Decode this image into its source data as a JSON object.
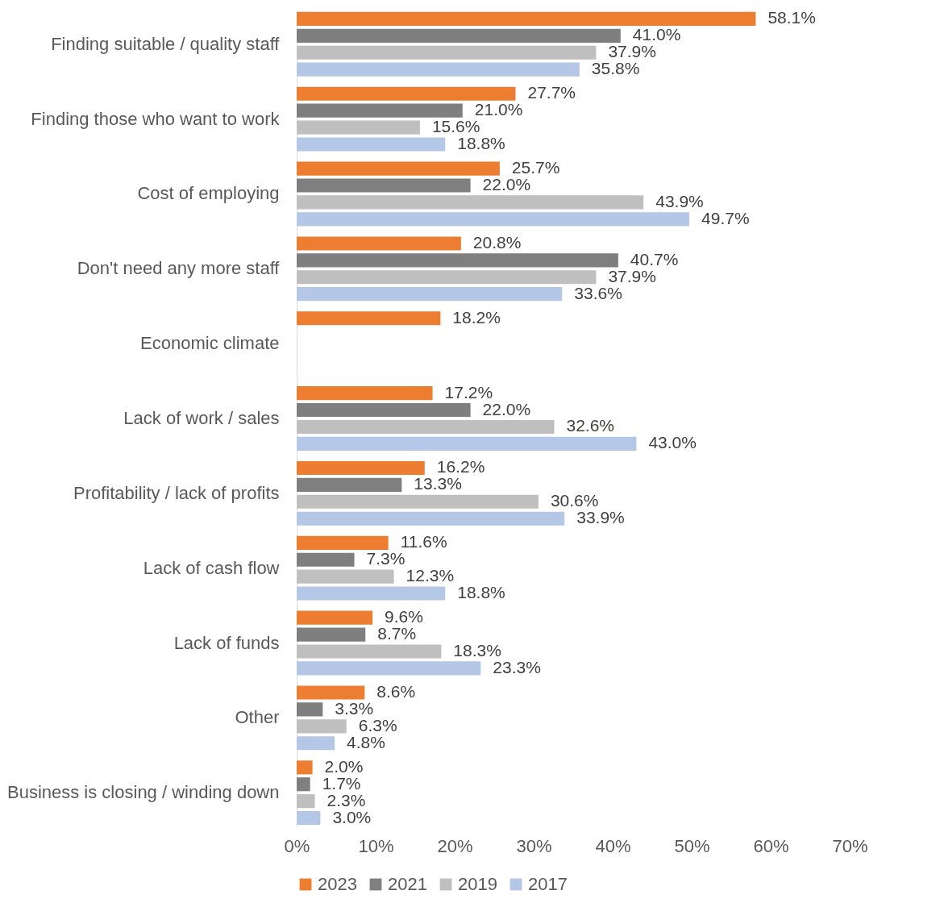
{
  "chart_data": {
    "type": "bar",
    "orientation": "horizontal",
    "categories": [
      "Finding suitable / quality staff",
      "Finding those who want to work",
      "Cost of employing",
      "Don't need any more staff",
      "Economic climate",
      "Lack of work / sales",
      "Profitability / lack of profits",
      "Lack of cash flow",
      "Lack of funds",
      "Other",
      "Business is closing / winding down"
    ],
    "series": [
      {
        "name": "2023",
        "color": "#ed7d31",
        "values": [
          58.1,
          27.7,
          25.7,
          20.8,
          18.2,
          17.2,
          16.2,
          11.6,
          9.6,
          8.6,
          2.0
        ],
        "value_labels": [
          "58.1%",
          "27.7%",
          "25.7%",
          "20.8%",
          "18.2%",
          "17.2%",
          "16.2%",
          "11.6%",
          "9.6%",
          "8.6%",
          "2.0%"
        ]
      },
      {
        "name": "2021",
        "color": "#7f7f7f",
        "values": [
          41.0,
          21.0,
          22.0,
          40.7,
          null,
          22.0,
          13.3,
          7.3,
          8.7,
          3.3,
          1.7
        ],
        "value_labels": [
          "41.0%",
          "21.0%",
          "22.0%",
          "40.7%",
          null,
          "22.0%",
          "13.3%",
          "7.3%",
          "8.7%",
          "3.3%",
          "1.7%"
        ]
      },
      {
        "name": "2019",
        "color": "#bfbfbf",
        "values": [
          37.9,
          15.6,
          43.9,
          37.9,
          null,
          32.6,
          30.6,
          12.3,
          18.3,
          6.3,
          2.3
        ],
        "value_labels": [
          "37.9%",
          "15.6%",
          "43.9%",
          "37.9%",
          null,
          "32.6%",
          "30.6%",
          "12.3%",
          "18.3%",
          "6.3%",
          "2.3%"
        ]
      },
      {
        "name": "2017",
        "color": "#b4c7e7",
        "values": [
          35.8,
          18.8,
          49.7,
          33.6,
          null,
          43.0,
          33.9,
          18.8,
          23.3,
          4.8,
          3.0
        ],
        "value_labels": [
          "35.8%",
          "18.8%",
          "49.7%",
          "33.6%",
          null,
          "43.0%",
          "33.9%",
          "18.8%",
          "23.3%",
          "4.8%",
          "3.0%"
        ]
      }
    ],
    "xlim": [
      0,
      70
    ],
    "xticks": [
      {
        "value": 0,
        "label": "0%"
      },
      {
        "value": 10,
        "label": "10%"
      },
      {
        "value": 20,
        "label": "20%"
      },
      {
        "value": 30,
        "label": "30%"
      },
      {
        "value": 40,
        "label": "40%"
      },
      {
        "value": 50,
        "label": "50%"
      },
      {
        "value": 60,
        "label": "60%"
      },
      {
        "value": 70,
        "label": "70%"
      }
    ],
    "grid": false,
    "legend": "bottom"
  }
}
